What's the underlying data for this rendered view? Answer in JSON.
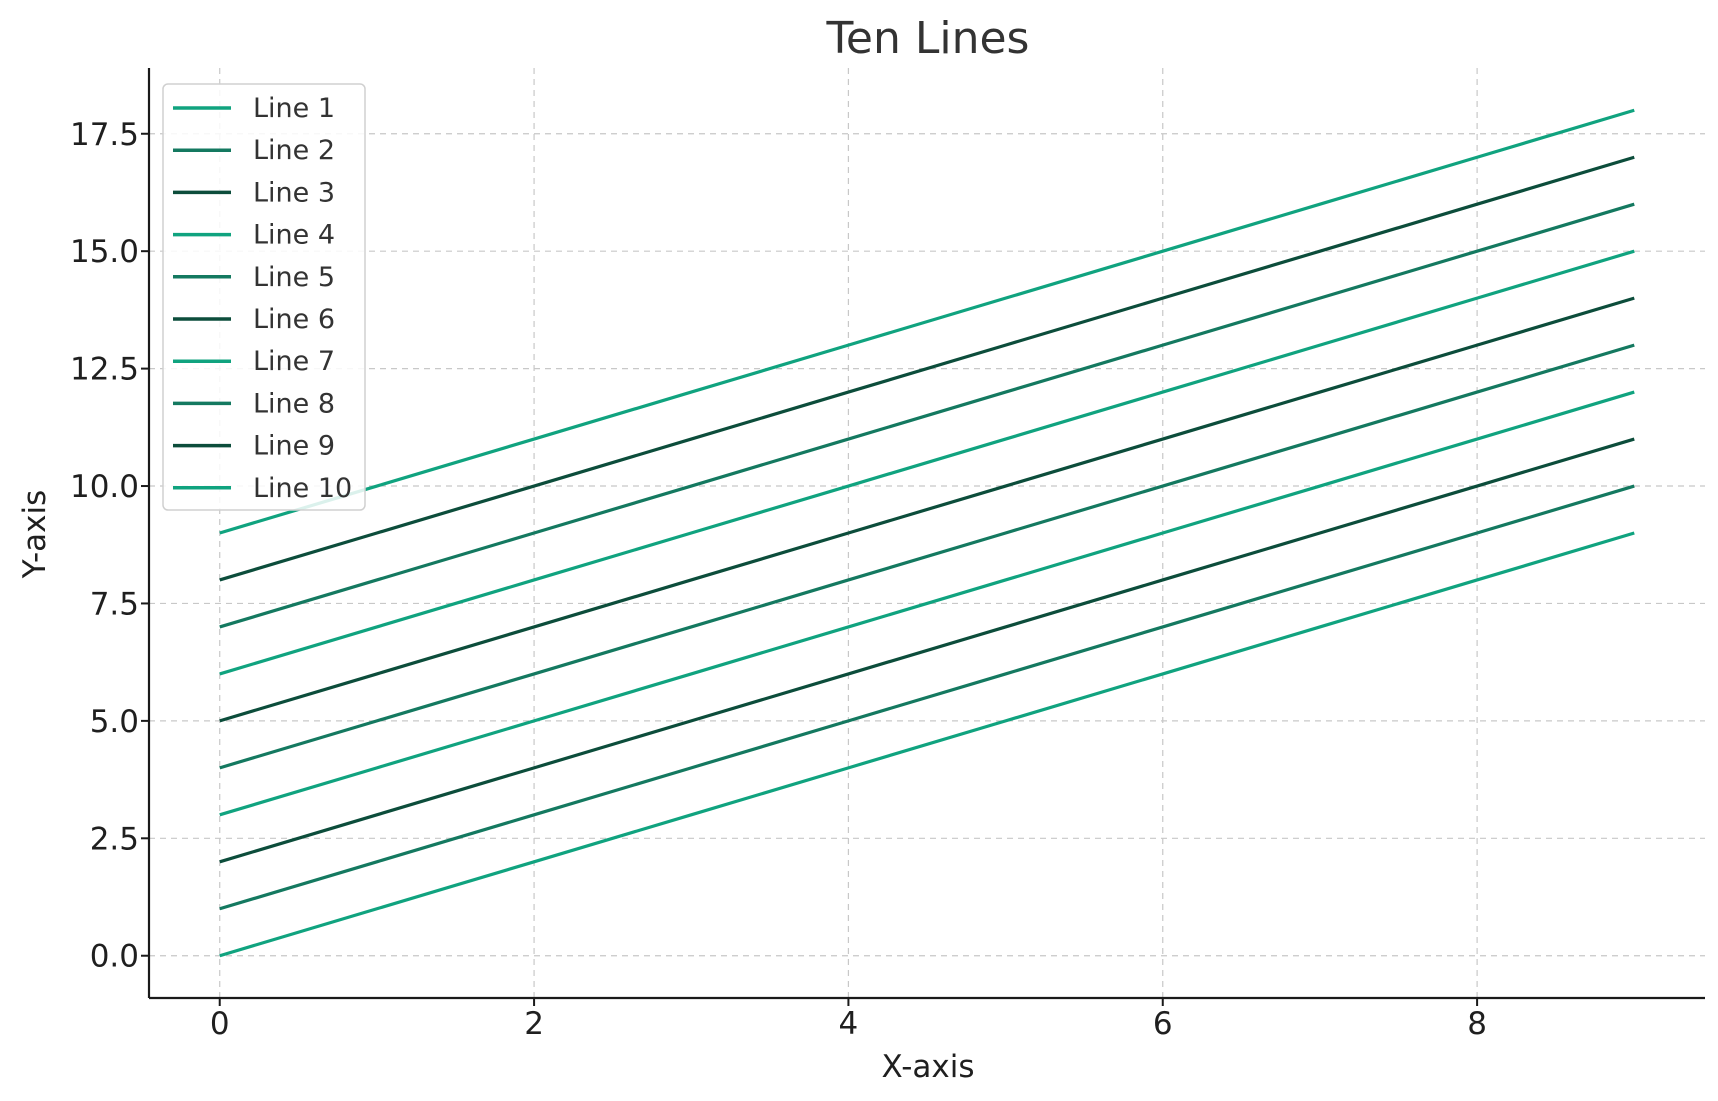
{
  "chart_data": {
    "type": "line",
    "title": "Ten Lines",
    "xlabel": "X-axis",
    "ylabel": "Y-axis",
    "x": [
      0,
      1,
      2,
      3,
      4,
      5,
      6,
      7,
      8,
      9
    ],
    "xlim": [
      -0.45,
      9.45
    ],
    "ylim": [
      -0.9,
      18.9
    ],
    "xticks": [
      0,
      2,
      4,
      6,
      8
    ],
    "xtick_labels": [
      "0",
      "2",
      "4",
      "6",
      "8"
    ],
    "yticks": [
      0,
      2.5,
      5,
      7.5,
      10,
      12.5,
      15,
      17.5
    ],
    "ytick_labels": [
      "0.0",
      "2.5",
      "5.0",
      "7.5",
      "10.0",
      "12.5",
      "15.0",
      "17.5"
    ],
    "grid": true,
    "legend_position": "top-left",
    "series": [
      {
        "name": "Line 1",
        "color": "#10a37f",
        "values": [
          9,
          10,
          11,
          12,
          13,
          14,
          15,
          16,
          17,
          18
        ]
      },
      {
        "name": "Line 2",
        "color": "#147960",
        "values": [
          7,
          8,
          9,
          10,
          11,
          12,
          13,
          14,
          15,
          16
        ]
      },
      {
        "name": "Line 3",
        "color": "#0c4d3b",
        "values": [
          8,
          9,
          10,
          11,
          12,
          13,
          14,
          15,
          16,
          17
        ]
      },
      {
        "name": "Line 4",
        "color": "#10a37f",
        "values": [
          6,
          7,
          8,
          9,
          10,
          11,
          12,
          13,
          14,
          15
        ]
      },
      {
        "name": "Line 5",
        "color": "#147960",
        "values": [
          4,
          5,
          6,
          7,
          8,
          9,
          10,
          11,
          12,
          13
        ]
      },
      {
        "name": "Line 6",
        "color": "#0c4d3b",
        "values": [
          5,
          6,
          7,
          8,
          9,
          10,
          11,
          12,
          13,
          14
        ]
      },
      {
        "name": "Line 7",
        "color": "#10a37f",
        "values": [
          3,
          4,
          5,
          6,
          7,
          8,
          9,
          10,
          11,
          12
        ]
      },
      {
        "name": "Line 8",
        "color": "#147960",
        "values": [
          1,
          2,
          3,
          4,
          5,
          6,
          7,
          8,
          9,
          10
        ]
      },
      {
        "name": "Line 9",
        "color": "#0c4d3b",
        "values": [
          2,
          3,
          4,
          5,
          6,
          7,
          8,
          9,
          10,
          11
        ]
      },
      {
        "name": "Line 10",
        "color": "#10a37f",
        "values": [
          0,
          1,
          2,
          3,
          4,
          5,
          6,
          7,
          8,
          9
        ]
      }
    ]
  }
}
